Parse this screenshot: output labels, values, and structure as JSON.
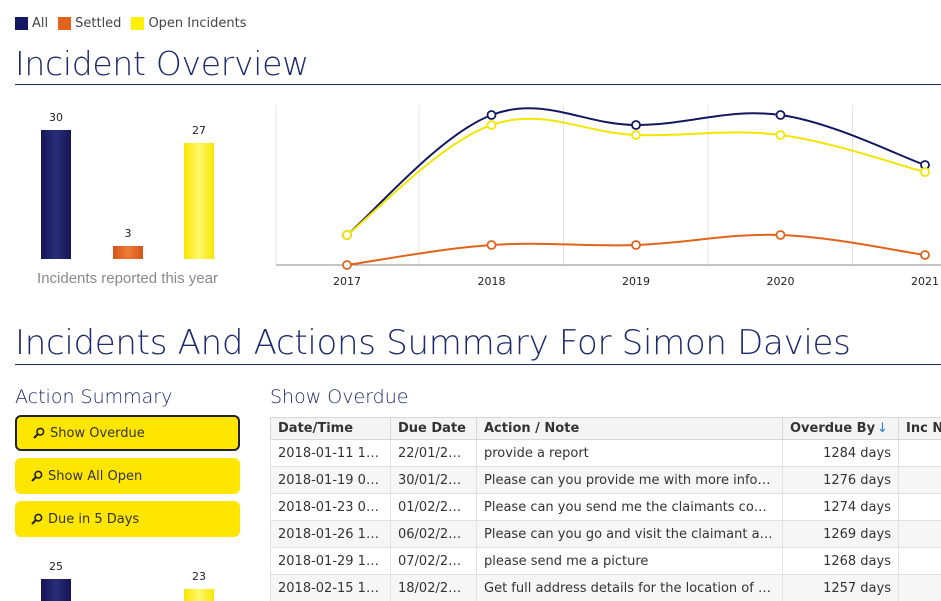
{
  "legend": [
    {
      "label": "All",
      "color": "#141860"
    },
    {
      "label": "Settled",
      "color": "#e2631a"
    },
    {
      "label": "Open Incidents",
      "color": "#fff200"
    }
  ],
  "overview": {
    "title": "Incident Overview",
    "bars": [
      {
        "value": 30,
        "label": "30",
        "color": "#1a1c5e"
      },
      {
        "value": 3,
        "label": "3",
        "color": "#e2631a"
      },
      {
        "value": 27,
        "label": "27",
        "color": "#fff200"
      }
    ],
    "bar_caption": "Incidents reported this year"
  },
  "chart_data": {
    "type": "line",
    "x": [
      "2017",
      "2018",
      "2019",
      "2020",
      "2021"
    ],
    "series": [
      {
        "name": "All",
        "color": "#141860",
        "values": [
          3,
          15,
          14,
          15,
          10
        ]
      },
      {
        "name": "Open Incidents",
        "color": "#f2e600",
        "values": [
          3,
          14,
          13,
          13,
          9.3
        ]
      },
      {
        "name": "Settled",
        "color": "#e2631a",
        "values": [
          0,
          2,
          2,
          3,
          1
        ]
      }
    ],
    "ylim": [
      0,
      16
    ],
    "grid": "vertical"
  },
  "summary": {
    "title": "Incidents And Actions Summary For Simon Davies",
    "action_summary_title": "Action Summary",
    "buttons": [
      {
        "label": "Show Overdue"
      },
      {
        "label": "Show All Open"
      },
      {
        "label": "Due in 5 Days"
      }
    ],
    "bars": [
      {
        "value": 25,
        "label": "25",
        "color": "#1a1c5e"
      },
      {
        "value": 23,
        "label": "23",
        "color": "#fff200"
      }
    ]
  },
  "overdue": {
    "title": "Show Overdue",
    "columns": [
      "Date/Time",
      "Due Date",
      "Action / Note",
      "Overdue By",
      "Inc N"
    ],
    "rows": [
      [
        "2018-01-11 14:...",
        "22/01/2018",
        "provide a report",
        "1284 days",
        ""
      ],
      [
        "2018-01-19 08:...",
        "30/01/2018",
        "Please can you provide me with more informa...",
        "1276 days",
        ""
      ],
      [
        "2018-01-23 08:...",
        "01/02/2018",
        "Please can you send me the claimants contact ...",
        "1274 days",
        ""
      ],
      [
        "2018-01-26 15:...",
        "06/02/2018",
        "Please can you go and visit the claimant and a...",
        "1269 days",
        ""
      ],
      [
        "2018-01-29 14:...",
        "07/02/2018",
        "please send me a picture",
        "1268 days",
        ""
      ],
      [
        "2018-02-15 13:...",
        "18/02/2018",
        "Get full address details for the location of the i...",
        "1257 days",
        ""
      ]
    ]
  }
}
